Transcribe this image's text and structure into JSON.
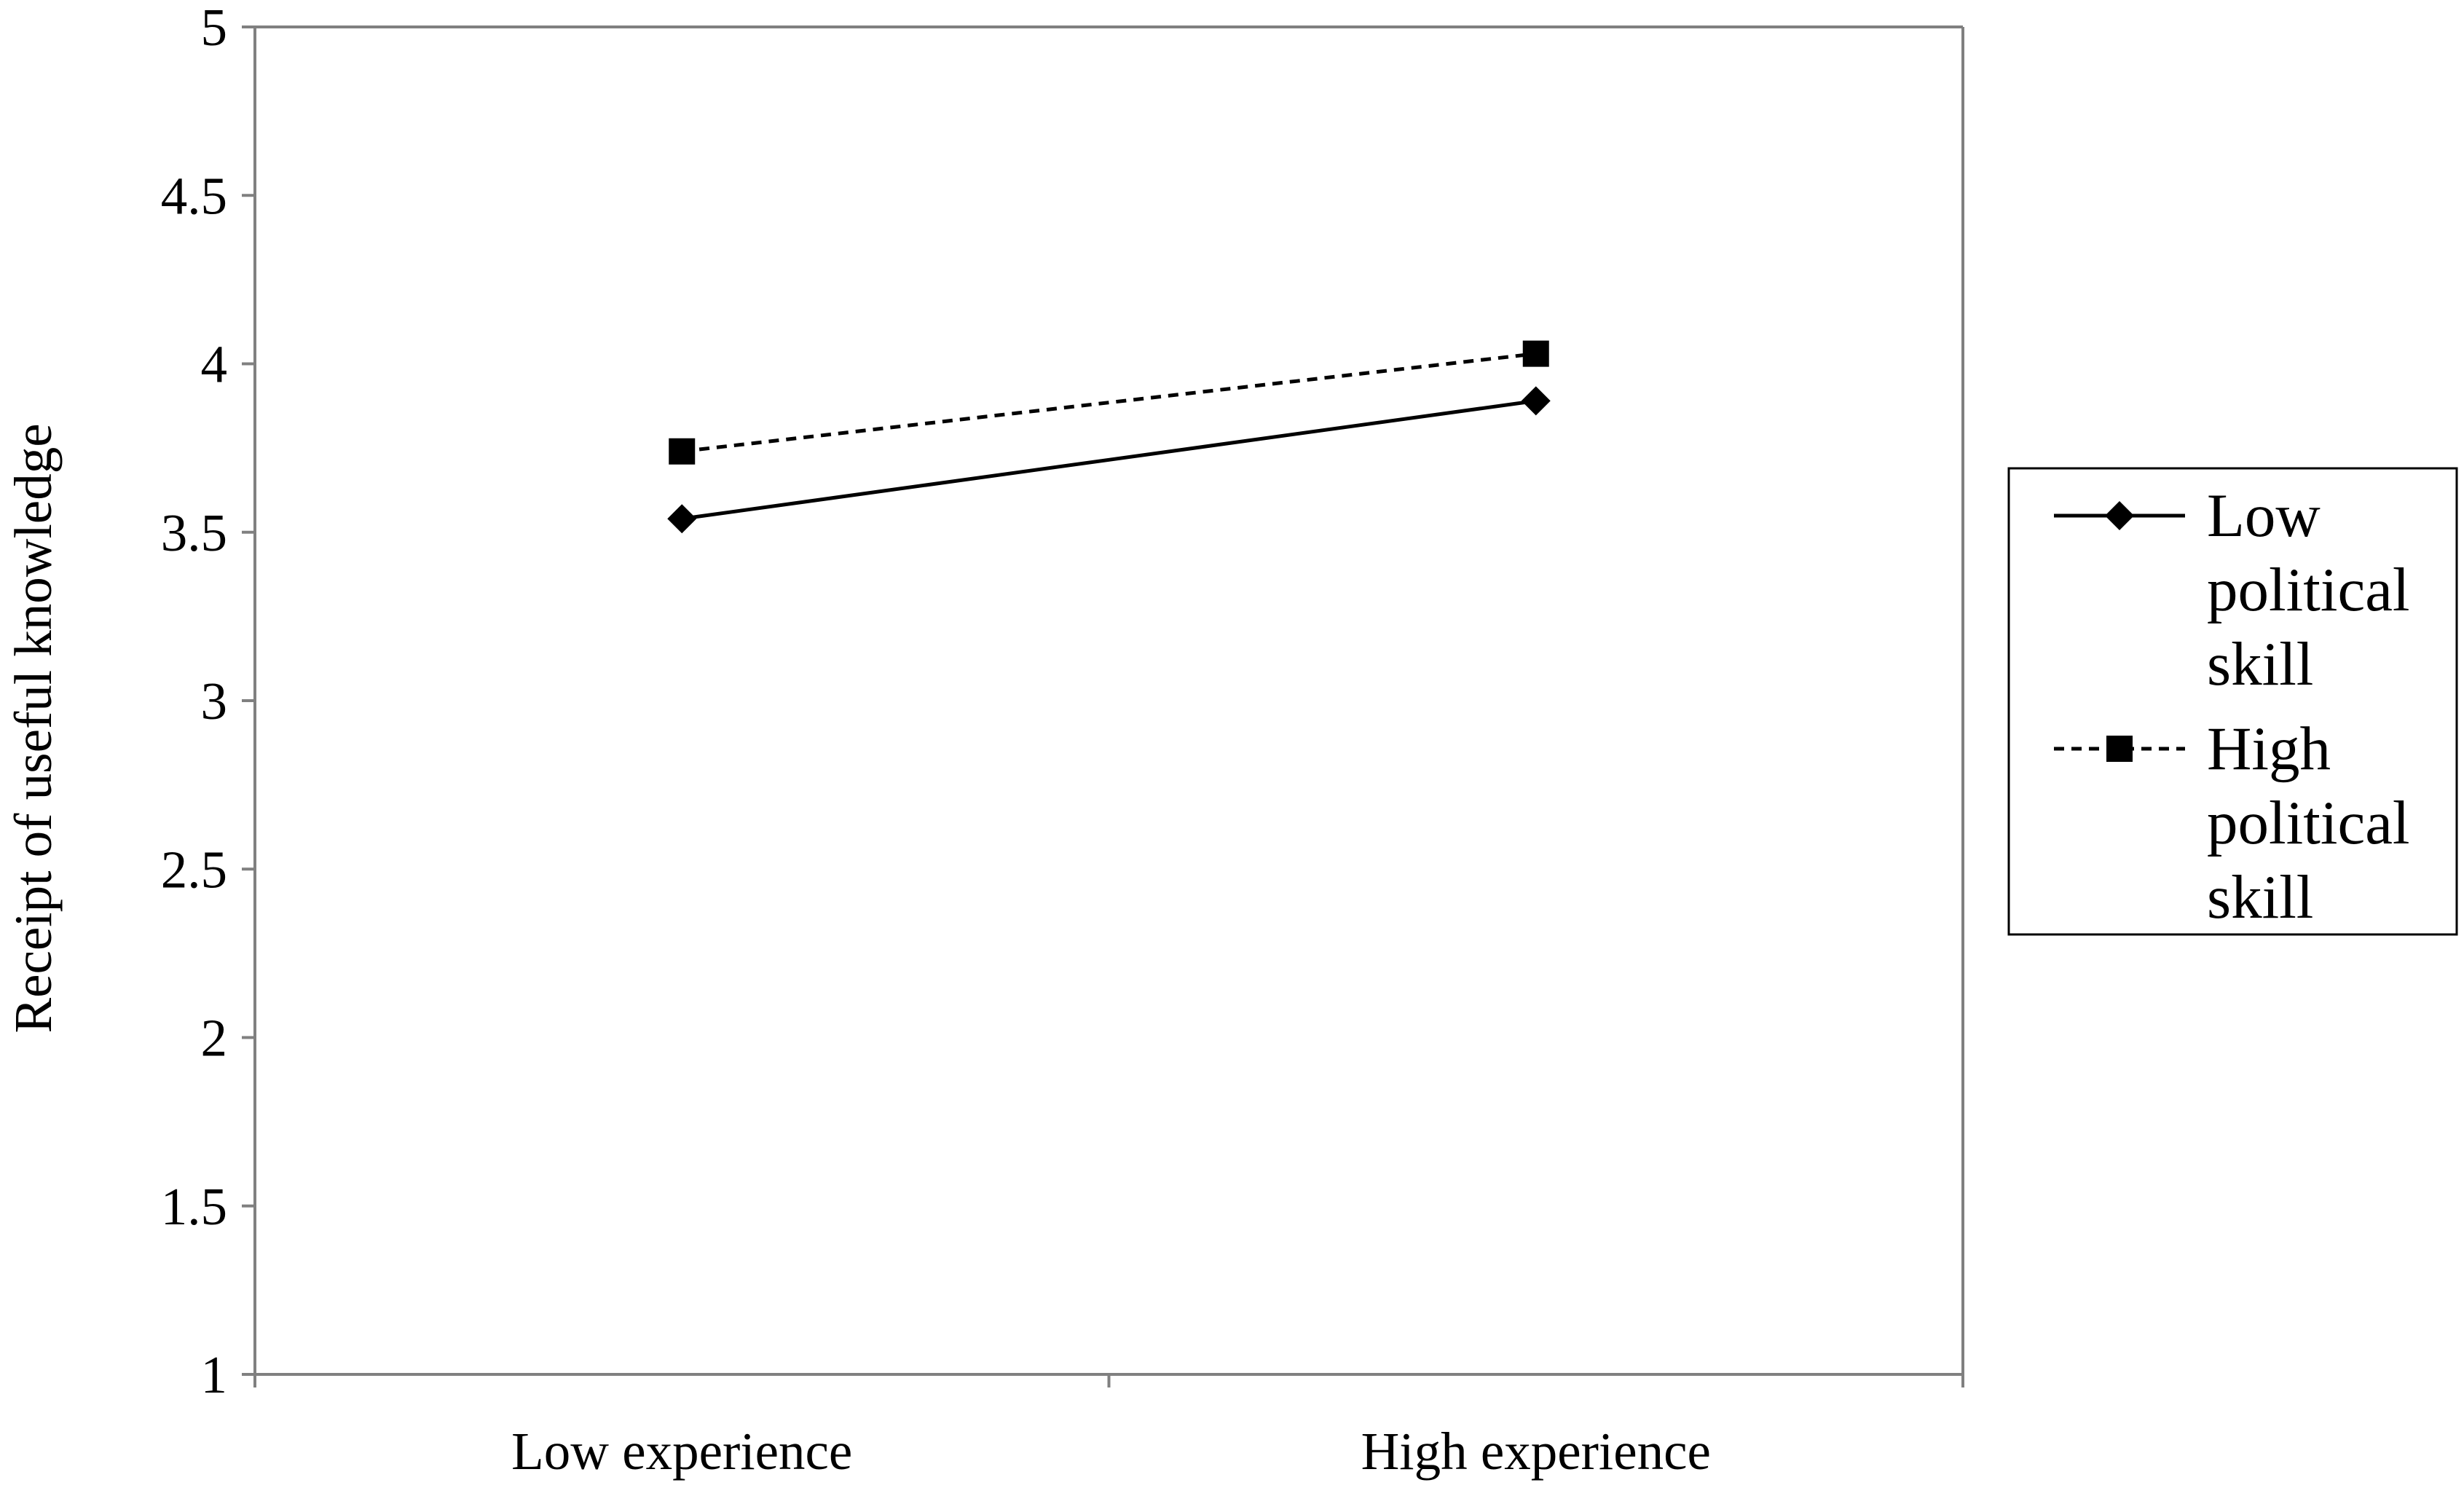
{
  "chart_data": {
    "type": "line",
    "title": "",
    "xlabel": "",
    "ylabel": "Receipt of useful knowledge",
    "categories": [
      "Low experience",
      "High experience"
    ],
    "ylim": [
      1,
      5
    ],
    "yticks": [
      "1",
      "1.5",
      "2",
      "2.5",
      "3",
      "3.5",
      "4",
      "4.5",
      "5"
    ],
    "grid": false,
    "legend_position": "right",
    "series": [
      {
        "name": "Low political skill",
        "name_lines": [
          "Low",
          "political",
          "skill"
        ],
        "values": [
          3.54,
          3.89
        ],
        "line_style": "solid",
        "marker": "diamond",
        "color": "#000000"
      },
      {
        "name": "High political skill",
        "name_lines": [
          "High",
          "political",
          "skill"
        ],
        "values": [
          3.74,
          4.03
        ],
        "line_style": "dashed",
        "marker": "square",
        "color": "#000000"
      }
    ],
    "colors": {
      "axis": "#808080",
      "frame": "#808080",
      "legend_border": "#000000"
    }
  }
}
